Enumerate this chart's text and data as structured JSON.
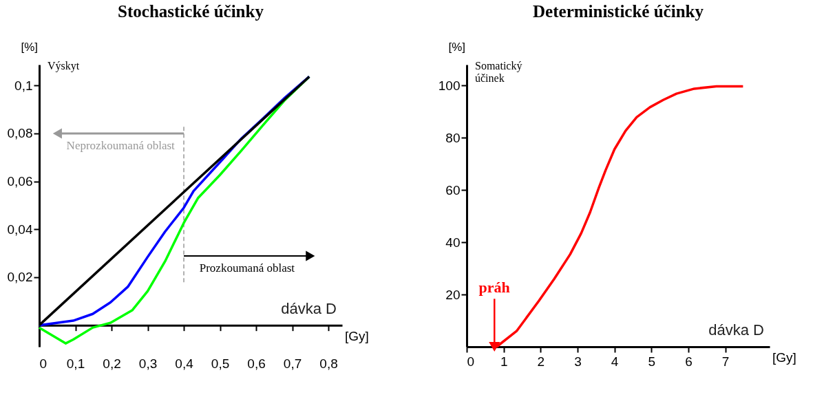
{
  "chart_data": [
    {
      "type": "line",
      "title": "Stochastické účinky",
      "xlabel": "dávka D",
      "ylabel": "Výskyt",
      "series": [
        {
          "color": "#000000",
          "x": [
            0,
            0.747
          ],
          "values": [
            0,
            0.1037
          ]
        },
        {
          "color": "#0000ff",
          "x": [
            0,
            0.094,
            0.148,
            0.197,
            0.245,
            0.3,
            0.348,
            0.4,
            0.427,
            0.5,
            0.56,
            0.62,
            0.68,
            0.747
          ],
          "values": [
            0,
            0.0019,
            0.0047,
            0.0095,
            0.016,
            0.0285,
            0.039,
            0.049,
            0.056,
            0.068,
            0.078,
            0.0864,
            0.095,
            0.1037
          ]
        },
        {
          "color": "#00ff00",
          "x": [
            0,
            0.073,
            0.094,
            0.148,
            0.197,
            0.257,
            0.3,
            0.348,
            0.4,
            0.439,
            0.5,
            0.56,
            0.62,
            0.68,
            0.747
          ],
          "values": [
            -0.001,
            -0.0076,
            -0.006,
            -0.001,
            0.001,
            0.0062,
            0.0142,
            0.0266,
            0.0427,
            0.053,
            0.0627,
            0.073,
            0.0836,
            0.094,
            0.1037
          ]
        }
      ],
      "xlim": [
        0,
        0.838
      ],
      "ylim": [
        -0.009,
        0.1087
      ],
      "xticks": [
        {
          "value": 0,
          "label": "0"
        },
        {
          "value": 0.1,
          "label": "0,1"
        },
        {
          "value": 0.2,
          "label": "0,2"
        },
        {
          "value": 0.3,
          "label": "0,3"
        },
        {
          "value": 0.4,
          "label": "0,4"
        },
        {
          "value": 0.5,
          "label": "0,5"
        },
        {
          "value": 0.6,
          "label": "0,6"
        },
        {
          "value": 0.7,
          "label": "0,7"
        },
        {
          "value": 0.8,
          "label": "0,8"
        }
      ],
      "yticks": [
        {
          "value": 0.02,
          "label": "0,02"
        },
        {
          "value": 0.04,
          "label": "0,04"
        },
        {
          "value": 0.06,
          "label": "0,06"
        },
        {
          "value": 0.08,
          "label": "0,08"
        },
        {
          "value": 0.1,
          "label": "0,1"
        }
      ],
      "ref_lines": [
        {
          "axis": "x",
          "value": 0.4,
          "color": "#999999",
          "line_style": "dashed"
        }
      ],
      "annotations": [
        "[%]",
        "[Gy]",
        "Neprozkoumaná oblast",
        "Prozkoumaná oblast"
      ],
      "grid": false,
      "legend": false
    },
    {
      "type": "line",
      "title": "Deterministické účinky",
      "xlabel": "dávka D",
      "ylabel": "Somatický účinek",
      "series": [
        {
          "color": "#ff0000",
          "x": [
            0.81,
            1.35,
            1.95,
            2.37,
            2.8,
            3.1,
            3.34,
            3.58,
            3.76,
            4.0,
            4.3,
            4.6,
            4.96,
            5.32,
            5.68,
            6.16,
            6.76,
            7.48
          ],
          "values": [
            0,
            6,
            17.5,
            26,
            35.4,
            43.5,
            51.5,
            61,
            67.6,
            75.6,
            82.7,
            87.9,
            91.7,
            94.5,
            96.9,
            98.8,
            99.7,
            99.7
          ]
        }
      ],
      "xlim": [
        0,
        8.2
      ],
      "ylim": [
        0,
        108
      ],
      "xticks": [
        0,
        1,
        2,
        3,
        4,
        5,
        6,
        7
      ],
      "yticks": [
        20,
        40,
        60,
        80,
        100
      ],
      "annotations": [
        "[%]",
        "[Gy]",
        {
          "text": "práh",
          "x": 0.75,
          "y": 0
        }
      ],
      "grid": false,
      "legend": false
    }
  ]
}
